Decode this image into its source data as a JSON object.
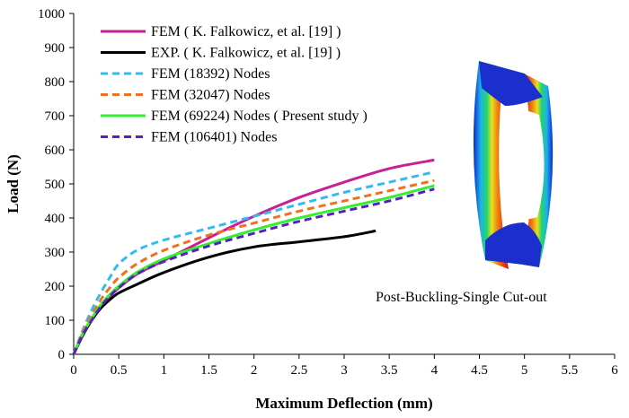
{
  "chart_data": {
    "type": "line",
    "xlabel": "Maximum Deflection (mm)",
    "ylabel": "Load (N)",
    "xlim": [
      0,
      6
    ],
    "ylim": [
      0,
      1000
    ],
    "xticks": [
      "0",
      "0.5",
      "1",
      "1.5",
      "2",
      "2.5",
      "3",
      "3.5",
      "4",
      "4.5",
      "5",
      "5.5",
      "6"
    ],
    "yticks": [
      "0",
      "100",
      "200",
      "300",
      "400",
      "500",
      "600",
      "700",
      "800",
      "900",
      "1000"
    ],
    "grid": false,
    "legend_position": "top-left",
    "annotation": "Post-Buckling-Single Cut-out",
    "series": [
      {
        "name": "FEM ( K. Falkowicz, et al. [19] )",
        "color": "#c81e96",
        "dash": "solid",
        "points": [
          [
            0,
            0
          ],
          [
            0.1,
            60
          ],
          [
            0.2,
            105
          ],
          [
            0.3,
            140
          ],
          [
            0.4,
            170
          ],
          [
            0.5,
            195
          ],
          [
            0.7,
            235
          ],
          [
            1.0,
            275
          ],
          [
            1.3,
            315
          ],
          [
            1.6,
            355
          ],
          [
            2.0,
            405
          ],
          [
            2.5,
            460
          ],
          [
            3.0,
            505
          ],
          [
            3.5,
            545
          ],
          [
            4.0,
            570
          ]
        ]
      },
      {
        "name": "EXP. ( K. Falkowicz, et al. [19] )",
        "color": "#000000",
        "dash": "solid",
        "points": [
          [
            0,
            0
          ],
          [
            0.1,
            55
          ],
          [
            0.2,
            100
          ],
          [
            0.3,
            135
          ],
          [
            0.4,
            160
          ],
          [
            0.5,
            180
          ],
          [
            0.7,
            205
          ],
          [
            1.0,
            240
          ],
          [
            1.5,
            285
          ],
          [
            2.0,
            315
          ],
          [
            2.5,
            330
          ],
          [
            3.0,
            345
          ],
          [
            3.35,
            362
          ]
        ]
      },
      {
        "name": "FEM (18392) Nodes",
        "color": "#33bbee",
        "dash": "dashed",
        "points": [
          [
            0,
            0
          ],
          [
            0.1,
            70
          ],
          [
            0.2,
            130
          ],
          [
            0.3,
            180
          ],
          [
            0.4,
            225
          ],
          [
            0.5,
            265
          ],
          [
            0.7,
            305
          ],
          [
            1.0,
            335
          ],
          [
            1.5,
            370
          ],
          [
            2.0,
            405
          ],
          [
            2.5,
            440
          ],
          [
            3.0,
            475
          ],
          [
            3.5,
            505
          ],
          [
            4.0,
            535
          ]
        ]
      },
      {
        "name": "FEM (32047) Nodes",
        "color": "#f07020",
        "dash": "dashed",
        "points": [
          [
            0,
            0
          ],
          [
            0.1,
            65
          ],
          [
            0.2,
            115
          ],
          [
            0.3,
            160
          ],
          [
            0.4,
            195
          ],
          [
            0.5,
            225
          ],
          [
            0.7,
            265
          ],
          [
            1.0,
            305
          ],
          [
            1.5,
            350
          ],
          [
            2.0,
            385
          ],
          [
            2.5,
            420
          ],
          [
            3.0,
            450
          ],
          [
            3.5,
            480
          ],
          [
            4.0,
            510
          ]
        ]
      },
      {
        "name": "FEM (69224) Nodes ( Present study )",
        "color": "#33ee33",
        "dash": "solid",
        "points": [
          [
            0,
            0
          ],
          [
            0.1,
            60
          ],
          [
            0.2,
            105
          ],
          [
            0.3,
            145
          ],
          [
            0.4,
            175
          ],
          [
            0.5,
            200
          ],
          [
            0.7,
            240
          ],
          [
            1.0,
            280
          ],
          [
            1.5,
            325
          ],
          [
            2.0,
            365
          ],
          [
            2.5,
            400
          ],
          [
            3.0,
            430
          ],
          [
            3.5,
            460
          ],
          [
            4.0,
            495
          ]
        ]
      },
      {
        "name": "FEM (106401) Nodes",
        "color": "#5522bb",
        "dash": "dashed",
        "points": [
          [
            0,
            0
          ],
          [
            0.1,
            58
          ],
          [
            0.2,
            100
          ],
          [
            0.3,
            140
          ],
          [
            0.4,
            170
          ],
          [
            0.5,
            195
          ],
          [
            0.7,
            235
          ],
          [
            1.0,
            272
          ],
          [
            1.5,
            318
          ],
          [
            2.0,
            355
          ],
          [
            2.5,
            390
          ],
          [
            3.0,
            420
          ],
          [
            3.5,
            450
          ],
          [
            4.0,
            485
          ]
        ]
      }
    ]
  }
}
